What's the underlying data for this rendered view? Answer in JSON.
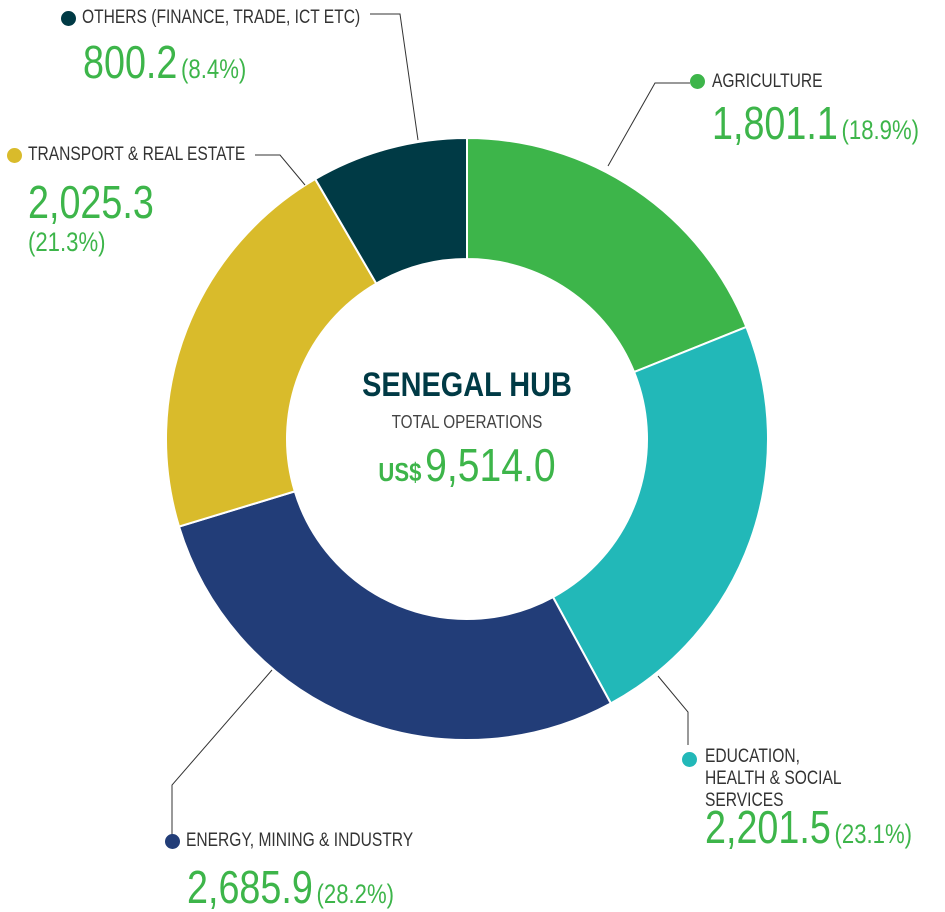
{
  "chart_data": {
    "type": "donut",
    "title": "SENEGAL HUB",
    "subtitle": "TOTAL OPERATIONS",
    "currency": "US$",
    "total_label": "9,514.0",
    "categories": [
      "AGRICULTURE",
      "EDUCATION, HEALTH & SOCIAL SERVICES",
      "ENERGY, MINING & INDUSTRY",
      "TRANSPORT & REAL ESTATE",
      "OTHERS (FINANCE, TRADE, ICT ETC)"
    ],
    "values": [
      1801.1,
      2201.5,
      2685.9,
      2025.3,
      800.2
    ],
    "value_labels": [
      "1,801.1",
      "2,201.5",
      "2,685.9",
      "2,025.3",
      "800.2"
    ],
    "percent_labels": [
      "(18.9%)",
      "(23.1%)",
      "(28.2%)",
      "(21.3%)",
      "(8.4%)"
    ],
    "colors": [
      "#3db54a",
      "#22b8b8",
      "#223d78",
      "#d9bb2b",
      "#003a45"
    ]
  }
}
